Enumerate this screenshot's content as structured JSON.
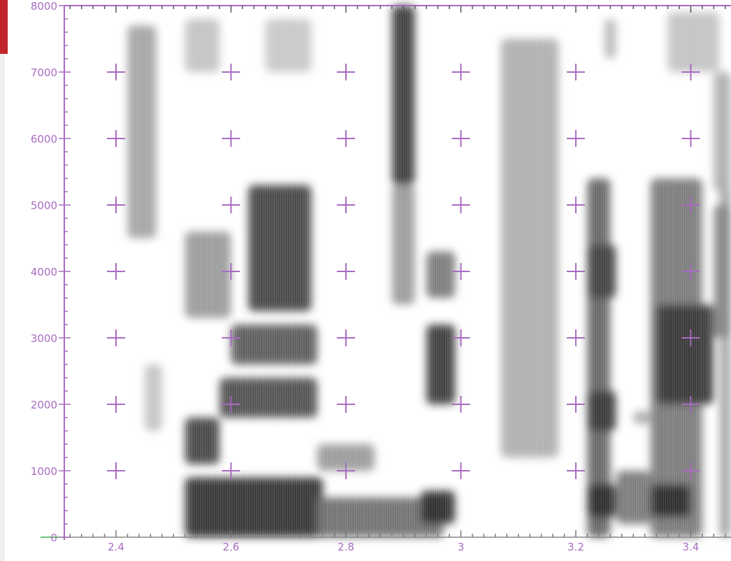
{
  "chart_data": {
    "type": "heatmap",
    "title": "",
    "xlabel": "",
    "ylabel": "",
    "xlim": [
      2.31,
      3.47
    ],
    "ylim": [
      0,
      8000
    ],
    "x_ticks": [
      2.4,
      2.6,
      2.8,
      3,
      3.2,
      3.4
    ],
    "x_tick_labels": [
      "2.4",
      "2.6",
      "2.8",
      "3",
      "3.2",
      "3.4"
    ],
    "y_ticks": [
      0,
      1000,
      2000,
      3000,
      4000,
      5000,
      6000,
      7000,
      8000
    ],
    "y_tick_labels": [
      "0",
      "1000",
      "2000",
      "3000",
      "4000",
      "5000",
      "6000",
      "7000",
      "8000"
    ],
    "grid": "cross markers",
    "colormap": "grayscale (white = low energy, black = high energy)",
    "accent_color": "#a86cc1",
    "regions": [
      {
        "x": [
          2.42,
          2.47
        ],
        "y": [
          4500,
          7700
        ],
        "intensity": 0.35
      },
      {
        "x": [
          2.45,
          2.48
        ],
        "y": [
          1600,
          2600
        ],
        "intensity": 0.2
      },
      {
        "x": [
          2.52,
          2.58
        ],
        "y": [
          7000,
          7800
        ],
        "intensity": 0.2
      },
      {
        "x": [
          2.66,
          2.74
        ],
        "y": [
          7000,
          7800
        ],
        "intensity": 0.18
      },
      {
        "x": [
          2.52,
          2.76
        ],
        "y": [
          0,
          900
        ],
        "intensity": 0.9
      },
      {
        "x": [
          2.52,
          2.58
        ],
        "y": [
          1100,
          1800
        ],
        "intensity": 0.8
      },
      {
        "x": [
          2.58,
          2.75
        ],
        "y": [
          1800,
          2400
        ],
        "intensity": 0.75
      },
      {
        "x": [
          2.6,
          2.75
        ],
        "y": [
          2600,
          3200
        ],
        "intensity": 0.7
      },
      {
        "x": [
          2.63,
          2.74
        ],
        "y": [
          3400,
          5300
        ],
        "intensity": 0.8
      },
      {
        "x": [
          2.52,
          2.6
        ],
        "y": [
          3300,
          4600
        ],
        "intensity": 0.4
      },
      {
        "x": [
          2.75,
          2.85
        ],
        "y": [
          1000,
          1400
        ],
        "intensity": 0.4
      },
      {
        "x": [
          2.75,
          2.97
        ],
        "y": [
          0,
          600
        ],
        "intensity": 0.6
      },
      {
        "x": [
          2.88,
          2.92
        ],
        "y": [
          5300,
          8000
        ],
        "intensity": 0.85
      },
      {
        "x": [
          2.88,
          2.92
        ],
        "y": [
          3500,
          5300
        ],
        "intensity": 0.4
      },
      {
        "x": [
          2.94,
          2.99
        ],
        "y": [
          2000,
          3200
        ],
        "intensity": 0.85
      },
      {
        "x": [
          2.94,
          2.99
        ],
        "y": [
          3600,
          4300
        ],
        "intensity": 0.55
      },
      {
        "x": [
          2.93,
          2.99
        ],
        "y": [
          200,
          700
        ],
        "intensity": 0.9
      },
      {
        "x": [
          3.07,
          3.17
        ],
        "y": [
          1200,
          7500
        ],
        "intensity": 0.3
      },
      {
        "x": [
          3.22,
          3.26
        ],
        "y": [
          0,
          5400
        ],
        "intensity": 0.65
      },
      {
        "x": [
          3.22,
          3.27
        ],
        "y": [
          3600,
          4400
        ],
        "intensity": 0.8
      },
      {
        "x": [
          3.22,
          3.27
        ],
        "y": [
          1600,
          2200
        ],
        "intensity": 0.85
      },
      {
        "x": [
          3.22,
          3.27
        ],
        "y": [
          300,
          800
        ],
        "intensity": 0.9
      },
      {
        "x": [
          3.27,
          3.33
        ],
        "y": [
          200,
          1000
        ],
        "intensity": 0.55
      },
      {
        "x": [
          3.33,
          3.42
        ],
        "y": [
          0,
          5400
        ],
        "intensity": 0.55
      },
      {
        "x": [
          3.34,
          3.44
        ],
        "y": [
          2000,
          3500
        ],
        "intensity": 0.85
      },
      {
        "x": [
          3.33,
          3.4
        ],
        "y": [
          300,
          800
        ],
        "intensity": 0.9
      },
      {
        "x": [
          3.3,
          3.33
        ],
        "y": [
          1700,
          1900
        ],
        "intensity": 0.3
      },
      {
        "x": [
          3.25,
          3.27
        ],
        "y": [
          7200,
          7800
        ],
        "intensity": 0.25
      },
      {
        "x": [
          3.36,
          3.45
        ],
        "y": [
          7000,
          7900
        ],
        "intensity": 0.2
      },
      {
        "x": [
          3.45,
          3.47
        ],
        "y": [
          0,
          5400
        ],
        "intensity": 0.35
      },
      {
        "x": [
          3.44,
          3.47
        ],
        "y": [
          3000,
          5000
        ],
        "intensity": 0.5
      },
      {
        "x": [
          3.44,
          3.47
        ],
        "y": [
          5200,
          7000
        ],
        "intensity": 0.3
      }
    ]
  }
}
